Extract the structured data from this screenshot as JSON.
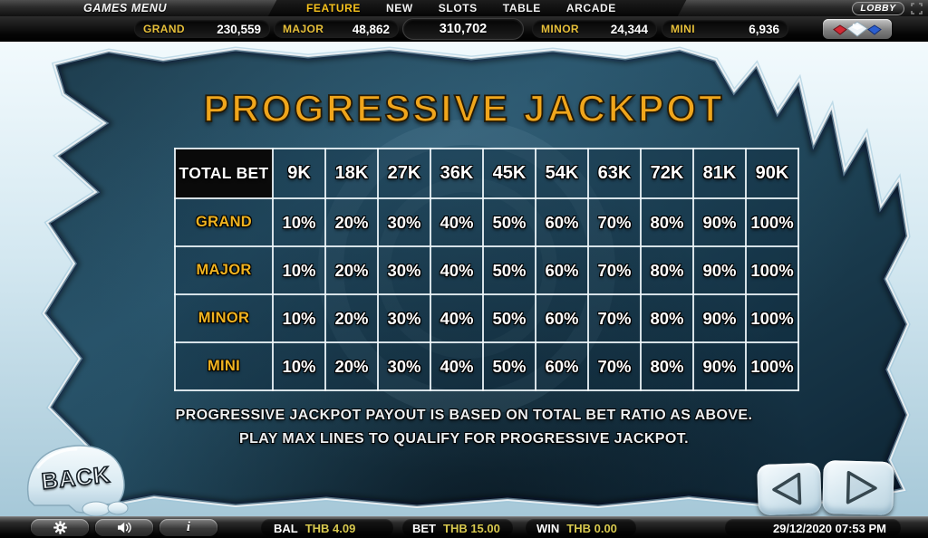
{
  "menu_bar": {
    "games_menu_label": "GAMES MENU",
    "items": [
      {
        "label": "FEATURE",
        "active": true
      },
      {
        "label": "NEW",
        "active": false
      },
      {
        "label": "SLOTS",
        "active": false
      },
      {
        "label": "TABLE",
        "active": false
      },
      {
        "label": "ARCADE",
        "active": false
      }
    ],
    "lobby_label": "LOBBY"
  },
  "jackpot_bar": {
    "entries": [
      {
        "label": "GRAND",
        "value": "230,559"
      },
      {
        "label": "MAJOR",
        "value": "48,862"
      },
      {
        "label": "",
        "value": "310,702"
      },
      {
        "label": "MINOR",
        "value": "24,344"
      },
      {
        "label": "MINI",
        "value": "6,936"
      }
    ]
  },
  "content": {
    "title": "PROGRESSIVE JACKPOT",
    "table": {
      "corner_header": "TOTAL BET",
      "bet_columns": [
        "9K",
        "18K",
        "27K",
        "36K",
        "45K",
        "54K",
        "63K",
        "72K",
        "81K",
        "90K"
      ],
      "rows": [
        {
          "label": "GRAND",
          "values": [
            "10%",
            "20%",
            "30%",
            "40%",
            "50%",
            "60%",
            "70%",
            "80%",
            "90%",
            "100%"
          ]
        },
        {
          "label": "MAJOR",
          "values": [
            "10%",
            "20%",
            "30%",
            "40%",
            "50%",
            "60%",
            "70%",
            "80%",
            "90%",
            "100%"
          ]
        },
        {
          "label": "MINOR",
          "values": [
            "10%",
            "20%",
            "30%",
            "40%",
            "50%",
            "60%",
            "70%",
            "80%",
            "90%",
            "100%"
          ]
        },
        {
          "label": "MINI",
          "values": [
            "10%",
            "20%",
            "30%",
            "40%",
            "50%",
            "60%",
            "70%",
            "80%",
            "90%",
            "100%"
          ]
        }
      ]
    },
    "footnote_line1": "PROGRESSIVE JACKPOT PAYOUT IS BASED ON TOTAL BET RATIO AS ABOVE.",
    "footnote_line2": "PLAY MAX LINES TO QUALIFY FOR PROGRESSIVE JACKPOT.",
    "back_label": "BACK"
  },
  "status_bar": {
    "bal_label": "BAL",
    "bal_value": "THB 4.09",
    "bet_label": "BET",
    "bet_value": "THB 15.00",
    "win_label": "WIN",
    "win_value": "THB 0.00",
    "datetime": "29/12/2020 07:53 PM"
  },
  "icons": {
    "info_glyph": "i"
  },
  "colors": {
    "menu_active_yellow": "#f6c21d",
    "jackpot_label_yellow": "#e6bf3a",
    "title_gold": "#f0a61c",
    "row_label_yellow": "#f0b320",
    "status_value_yellow": "#d8c94f",
    "panel_teal": "#1d4154",
    "ice_light": "#eef7fb"
  }
}
